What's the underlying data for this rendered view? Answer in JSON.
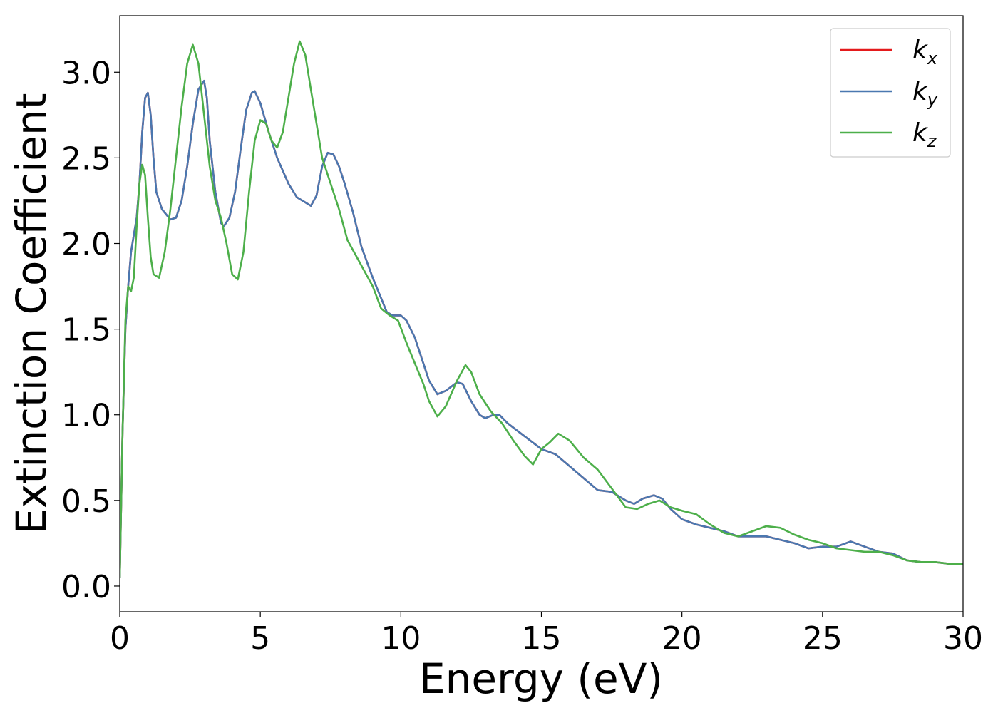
{
  "chart_data": {
    "type": "line",
    "title": "",
    "xlabel": "Energy (eV)",
    "ylabel": "Extinction Coefficient",
    "xlim": [
      0,
      30
    ],
    "ylim": [
      -0.15,
      3.33
    ],
    "xticks": [
      0,
      5,
      10,
      15,
      20,
      25,
      30
    ],
    "xtick_labels": [
      "0",
      "5",
      "10",
      "15",
      "20",
      "25",
      "30"
    ],
    "yticks": [
      0.0,
      0.5,
      1.0,
      1.5,
      2.0,
      2.5,
      3.0
    ],
    "ytick_labels": [
      "0.0",
      "0.5",
      "1.0",
      "1.5",
      "2.0",
      "2.5",
      "3.0"
    ],
    "grid": false,
    "legend_position": "top-right",
    "series": [
      {
        "name": "k_x",
        "legend_base": "k",
        "legend_sub": "x",
        "color": "#e41a1c",
        "points": [
          [
            0,
            0.05
          ],
          [
            0.1,
            0.9
          ],
          [
            0.2,
            1.5
          ],
          [
            0.3,
            1.75
          ],
          [
            0.4,
            1.95
          ],
          [
            0.5,
            2.05
          ],
          [
            0.6,
            2.15
          ],
          [
            0.7,
            2.35
          ],
          [
            0.8,
            2.65
          ],
          [
            0.9,
            2.85
          ],
          [
            1.0,
            2.88
          ],
          [
            1.1,
            2.75
          ],
          [
            1.2,
            2.5
          ],
          [
            1.3,
            2.3
          ],
          [
            1.5,
            2.2
          ],
          [
            1.8,
            2.14
          ],
          [
            2.0,
            2.15
          ],
          [
            2.2,
            2.25
          ],
          [
            2.4,
            2.45
          ],
          [
            2.6,
            2.7
          ],
          [
            2.8,
            2.9
          ],
          [
            3.0,
            2.95
          ],
          [
            3.1,
            2.85
          ],
          [
            3.2,
            2.6
          ],
          [
            3.4,
            2.3
          ],
          [
            3.6,
            2.12
          ],
          [
            3.7,
            2.1
          ],
          [
            3.9,
            2.15
          ],
          [
            4.1,
            2.3
          ],
          [
            4.3,
            2.55
          ],
          [
            4.5,
            2.78
          ],
          [
            4.7,
            2.88
          ],
          [
            4.8,
            2.89
          ],
          [
            5.0,
            2.82
          ],
          [
            5.3,
            2.65
          ],
          [
            5.6,
            2.5
          ],
          [
            6.0,
            2.35
          ],
          [
            6.3,
            2.27
          ],
          [
            6.6,
            2.24
          ],
          [
            6.8,
            2.22
          ],
          [
            7.0,
            2.28
          ],
          [
            7.2,
            2.45
          ],
          [
            7.4,
            2.53
          ],
          [
            7.6,
            2.52
          ],
          [
            7.8,
            2.45
          ],
          [
            8.0,
            2.35
          ],
          [
            8.3,
            2.18
          ],
          [
            8.6,
            1.98
          ],
          [
            9.0,
            1.8
          ],
          [
            9.3,
            1.68
          ],
          [
            9.5,
            1.6
          ],
          [
            9.7,
            1.58
          ],
          [
            10.0,
            1.58
          ],
          [
            10.2,
            1.55
          ],
          [
            10.5,
            1.45
          ],
          [
            10.8,
            1.3
          ],
          [
            11.0,
            1.2
          ],
          [
            11.3,
            1.12
          ],
          [
            11.6,
            1.14
          ],
          [
            12.0,
            1.19
          ],
          [
            12.2,
            1.18
          ],
          [
            12.5,
            1.08
          ],
          [
            12.8,
            1.0
          ],
          [
            13.0,
            0.98
          ],
          [
            13.3,
            1.0
          ],
          [
            13.5,
            1.0
          ],
          [
            13.8,
            0.95
          ],
          [
            14.2,
            0.9
          ],
          [
            14.6,
            0.85
          ],
          [
            15.0,
            0.8
          ],
          [
            15.5,
            0.77
          ],
          [
            16.0,
            0.7
          ],
          [
            16.5,
            0.63
          ],
          [
            17.0,
            0.56
          ],
          [
            17.5,
            0.55
          ],
          [
            18.0,
            0.5
          ],
          [
            18.3,
            0.48
          ],
          [
            18.6,
            0.51
          ],
          [
            19.0,
            0.53
          ],
          [
            19.3,
            0.51
          ],
          [
            19.6,
            0.45
          ],
          [
            20.0,
            0.39
          ],
          [
            20.5,
            0.36
          ],
          [
            21.0,
            0.34
          ],
          [
            21.5,
            0.32
          ],
          [
            22.0,
            0.29
          ],
          [
            22.5,
            0.29
          ],
          [
            23.0,
            0.29
          ],
          [
            23.5,
            0.27
          ],
          [
            24.0,
            0.25
          ],
          [
            24.5,
            0.22
          ],
          [
            25.0,
            0.23
          ],
          [
            25.5,
            0.23
          ],
          [
            26.0,
            0.26
          ],
          [
            26.5,
            0.23
          ],
          [
            27.0,
            0.2
          ],
          [
            27.5,
            0.19
          ],
          [
            28.0,
            0.15
          ],
          [
            28.5,
            0.14
          ],
          [
            29.0,
            0.14
          ],
          [
            29.5,
            0.13
          ],
          [
            30.0,
            0.13
          ]
        ]
      },
      {
        "name": "k_y",
        "legend_base": "k",
        "legend_sub": "y",
        "color": "#4a78b0",
        "points": [
          [
            0,
            0.05
          ],
          [
            0.1,
            0.9
          ],
          [
            0.2,
            1.5
          ],
          [
            0.3,
            1.75
          ],
          [
            0.4,
            1.95
          ],
          [
            0.5,
            2.05
          ],
          [
            0.6,
            2.15
          ],
          [
            0.7,
            2.35
          ],
          [
            0.8,
            2.65
          ],
          [
            0.9,
            2.85
          ],
          [
            1.0,
            2.88
          ],
          [
            1.1,
            2.75
          ],
          [
            1.2,
            2.5
          ],
          [
            1.3,
            2.3
          ],
          [
            1.5,
            2.2
          ],
          [
            1.8,
            2.14
          ],
          [
            2.0,
            2.15
          ],
          [
            2.2,
            2.25
          ],
          [
            2.4,
            2.45
          ],
          [
            2.6,
            2.7
          ],
          [
            2.8,
            2.9
          ],
          [
            3.0,
            2.95
          ],
          [
            3.1,
            2.85
          ],
          [
            3.2,
            2.6
          ],
          [
            3.4,
            2.3
          ],
          [
            3.6,
            2.12
          ],
          [
            3.7,
            2.1
          ],
          [
            3.9,
            2.15
          ],
          [
            4.1,
            2.3
          ],
          [
            4.3,
            2.55
          ],
          [
            4.5,
            2.78
          ],
          [
            4.7,
            2.88
          ],
          [
            4.8,
            2.89
          ],
          [
            5.0,
            2.82
          ],
          [
            5.3,
            2.65
          ],
          [
            5.6,
            2.5
          ],
          [
            6.0,
            2.35
          ],
          [
            6.3,
            2.27
          ],
          [
            6.6,
            2.24
          ],
          [
            6.8,
            2.22
          ],
          [
            7.0,
            2.28
          ],
          [
            7.2,
            2.45
          ],
          [
            7.4,
            2.53
          ],
          [
            7.6,
            2.52
          ],
          [
            7.8,
            2.45
          ],
          [
            8.0,
            2.35
          ],
          [
            8.3,
            2.18
          ],
          [
            8.6,
            1.98
          ],
          [
            9.0,
            1.8
          ],
          [
            9.3,
            1.68
          ],
          [
            9.5,
            1.6
          ],
          [
            9.7,
            1.58
          ],
          [
            10.0,
            1.58
          ],
          [
            10.2,
            1.55
          ],
          [
            10.5,
            1.45
          ],
          [
            10.8,
            1.3
          ],
          [
            11.0,
            1.2
          ],
          [
            11.3,
            1.12
          ],
          [
            11.6,
            1.14
          ],
          [
            12.0,
            1.19
          ],
          [
            12.2,
            1.18
          ],
          [
            12.5,
            1.08
          ],
          [
            12.8,
            1.0
          ],
          [
            13.0,
            0.98
          ],
          [
            13.3,
            1.0
          ],
          [
            13.5,
            1.0
          ],
          [
            13.8,
            0.95
          ],
          [
            14.2,
            0.9
          ],
          [
            14.6,
            0.85
          ],
          [
            15.0,
            0.8
          ],
          [
            15.5,
            0.77
          ],
          [
            16.0,
            0.7
          ],
          [
            16.5,
            0.63
          ],
          [
            17.0,
            0.56
          ],
          [
            17.5,
            0.55
          ],
          [
            18.0,
            0.5
          ],
          [
            18.3,
            0.48
          ],
          [
            18.6,
            0.51
          ],
          [
            19.0,
            0.53
          ],
          [
            19.3,
            0.51
          ],
          [
            19.6,
            0.45
          ],
          [
            20.0,
            0.39
          ],
          [
            20.5,
            0.36
          ],
          [
            21.0,
            0.34
          ],
          [
            21.5,
            0.32
          ],
          [
            22.0,
            0.29
          ],
          [
            22.5,
            0.29
          ],
          [
            23.0,
            0.29
          ],
          [
            23.5,
            0.27
          ],
          [
            24.0,
            0.25
          ],
          [
            24.5,
            0.22
          ],
          [
            25.0,
            0.23
          ],
          [
            25.5,
            0.23
          ],
          [
            26.0,
            0.26
          ],
          [
            26.5,
            0.23
          ],
          [
            27.0,
            0.2
          ],
          [
            27.5,
            0.19
          ],
          [
            28.0,
            0.15
          ],
          [
            28.5,
            0.14
          ],
          [
            29.0,
            0.14
          ],
          [
            29.5,
            0.13
          ],
          [
            30.0,
            0.13
          ]
        ]
      },
      {
        "name": "k_z",
        "legend_base": "k",
        "legend_sub": "z",
        "color": "#4daf4a",
        "points": [
          [
            0,
            0.05
          ],
          [
            0.1,
            0.9
          ],
          [
            0.2,
            1.55
          ],
          [
            0.3,
            1.75
          ],
          [
            0.4,
            1.72
          ],
          [
            0.5,
            1.8
          ],
          [
            0.6,
            2.1
          ],
          [
            0.7,
            2.35
          ],
          [
            0.8,
            2.46
          ],
          [
            0.9,
            2.4
          ],
          [
            1.0,
            2.15
          ],
          [
            1.1,
            1.92
          ],
          [
            1.2,
            1.82
          ],
          [
            1.4,
            1.8
          ],
          [
            1.6,
            1.95
          ],
          [
            1.8,
            2.2
          ],
          [
            2.0,
            2.5
          ],
          [
            2.2,
            2.8
          ],
          [
            2.4,
            3.05
          ],
          [
            2.6,
            3.16
          ],
          [
            2.8,
            3.05
          ],
          [
            3.0,
            2.75
          ],
          [
            3.2,
            2.45
          ],
          [
            3.4,
            2.25
          ],
          [
            3.6,
            2.15
          ],
          [
            3.8,
            2.0
          ],
          [
            4.0,
            1.82
          ],
          [
            4.2,
            1.79
          ],
          [
            4.4,
            1.95
          ],
          [
            4.6,
            2.3
          ],
          [
            4.8,
            2.6
          ],
          [
            5.0,
            2.72
          ],
          [
            5.2,
            2.7
          ],
          [
            5.4,
            2.6
          ],
          [
            5.6,
            2.56
          ],
          [
            5.8,
            2.65
          ],
          [
            6.0,
            2.85
          ],
          [
            6.2,
            3.05
          ],
          [
            6.4,
            3.18
          ],
          [
            6.6,
            3.1
          ],
          [
            6.8,
            2.9
          ],
          [
            7.0,
            2.7
          ],
          [
            7.2,
            2.5
          ],
          [
            7.5,
            2.35
          ],
          [
            7.8,
            2.2
          ],
          [
            8.1,
            2.02
          ],
          [
            8.5,
            1.9
          ],
          [
            9.0,
            1.75
          ],
          [
            9.3,
            1.62
          ],
          [
            9.6,
            1.58
          ],
          [
            9.9,
            1.55
          ],
          [
            10.2,
            1.42
          ],
          [
            10.5,
            1.3
          ],
          [
            10.8,
            1.18
          ],
          [
            11.0,
            1.08
          ],
          [
            11.3,
            0.99
          ],
          [
            11.6,
            1.05
          ],
          [
            12.0,
            1.2
          ],
          [
            12.3,
            1.29
          ],
          [
            12.5,
            1.25
          ],
          [
            12.8,
            1.12
          ],
          [
            13.2,
            1.02
          ],
          [
            13.6,
            0.95
          ],
          [
            14.0,
            0.85
          ],
          [
            14.4,
            0.76
          ],
          [
            14.7,
            0.71
          ],
          [
            15.0,
            0.8
          ],
          [
            15.3,
            0.84
          ],
          [
            15.6,
            0.89
          ],
          [
            16.0,
            0.85
          ],
          [
            16.5,
            0.75
          ],
          [
            17.0,
            0.68
          ],
          [
            17.5,
            0.57
          ],
          [
            18.0,
            0.46
          ],
          [
            18.4,
            0.45
          ],
          [
            18.8,
            0.48
          ],
          [
            19.2,
            0.5
          ],
          [
            19.6,
            0.46
          ],
          [
            20.0,
            0.44
          ],
          [
            20.5,
            0.42
          ],
          [
            21.0,
            0.36
          ],
          [
            21.5,
            0.31
          ],
          [
            22.0,
            0.29
          ],
          [
            22.5,
            0.32
          ],
          [
            23.0,
            0.35
          ],
          [
            23.5,
            0.34
          ],
          [
            24.0,
            0.3
          ],
          [
            24.5,
            0.27
          ],
          [
            25.0,
            0.25
          ],
          [
            25.5,
            0.22
          ],
          [
            26.0,
            0.21
          ],
          [
            26.5,
            0.2
          ],
          [
            27.0,
            0.2
          ],
          [
            27.5,
            0.18
          ],
          [
            28.0,
            0.15
          ],
          [
            28.5,
            0.14
          ],
          [
            29.0,
            0.14
          ],
          [
            29.5,
            0.13
          ],
          [
            30.0,
            0.13
          ]
        ]
      }
    ]
  }
}
